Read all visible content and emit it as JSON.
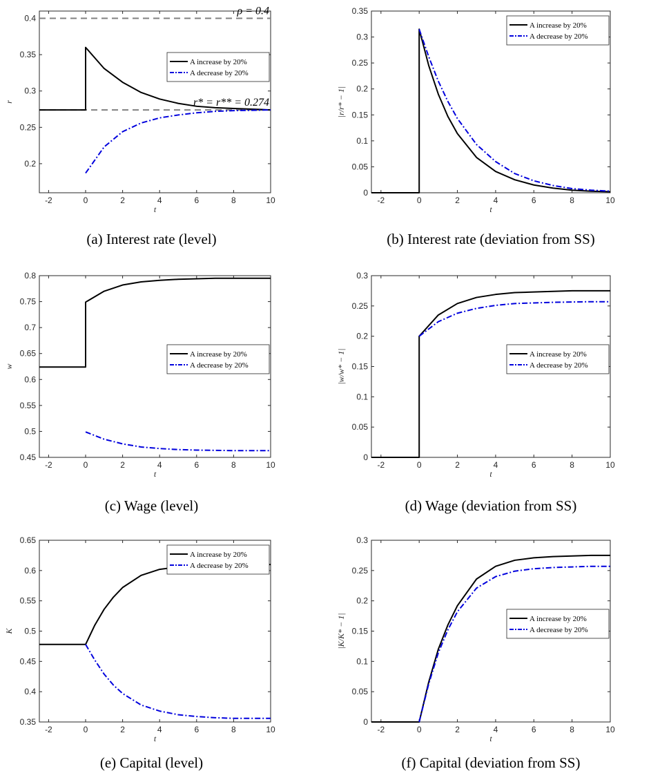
{
  "legend_labels": [
    "A increase by 20%",
    "A decrease by 20%"
  ],
  "colors": {
    "increase": "#000000",
    "decrease": "#0000dd",
    "ref": "#808080"
  },
  "chart_data": [
    {
      "id": "a",
      "type": "line",
      "caption": "(a) Interest rate (level)",
      "xlabel": "t",
      "ylabel": "r",
      "xlim": [
        -2.5,
        10
      ],
      "ylim": [
        0.16,
        0.41
      ],
      "xticks": [
        -2,
        0,
        2,
        4,
        6,
        8,
        10
      ],
      "yticks": [
        0.2,
        0.25,
        0.3,
        0.35,
        0.4
      ],
      "legend": {
        "position": "upper-right"
      },
      "reference_lines": [
        {
          "y": 0.4,
          "label": "ρ = 0.4"
        },
        {
          "y": 0.274,
          "label": "r* = r** = 0.274"
        }
      ],
      "series": [
        {
          "name": "A increase by 20%",
          "style": "solid",
          "color": "#000000",
          "x": [
            -2.5,
            0,
            0,
            1,
            2,
            3,
            4,
            5,
            6,
            7,
            8,
            9,
            10
          ],
          "y": [
            0.274,
            0.274,
            0.36,
            0.331,
            0.312,
            0.298,
            0.289,
            0.283,
            0.279,
            0.277,
            0.276,
            0.275,
            0.274
          ]
        },
        {
          "name": "A decrease by 20%",
          "style": "dashdot",
          "color": "#0000dd",
          "x": [
            0,
            1,
            2,
            3,
            4,
            5,
            6,
            7,
            8,
            9,
            10
          ],
          "y": [
            0.187,
            0.223,
            0.244,
            0.256,
            0.263,
            0.267,
            0.27,
            0.272,
            0.273,
            0.2735,
            0.274
          ]
        }
      ]
    },
    {
      "id": "b",
      "type": "line",
      "caption": "(b) Interest rate (deviation from SS)",
      "xlabel": "t",
      "ylabel": "|r/r* − 1|",
      "xlim": [
        -2.5,
        10
      ],
      "ylim": [
        0,
        0.35
      ],
      "xticks": [
        -2,
        0,
        2,
        4,
        6,
        8,
        10
      ],
      "yticks": [
        0,
        0.05,
        0.1,
        0.15,
        0.2,
        0.25,
        0.3,
        0.35
      ],
      "legend": {
        "position": "upper-right"
      },
      "series": [
        {
          "name": "A increase by 20%",
          "style": "solid",
          "color": "#000000",
          "x": [
            -2.5,
            0,
            0,
            0.5,
            1,
            1.5,
            2,
            3,
            4,
            5,
            6,
            7,
            8,
            9,
            10
          ],
          "y": [
            0,
            0,
            0.315,
            0.245,
            0.19,
            0.147,
            0.114,
            0.068,
            0.041,
            0.025,
            0.015,
            0.009,
            0.005,
            0.003,
            0.002
          ]
        },
        {
          "name": "A decrease by 20%",
          "style": "dashdot",
          "color": "#0000dd",
          "x": [
            0,
            0.5,
            1,
            1.5,
            2,
            3,
            4,
            5,
            6,
            7,
            8,
            9,
            10
          ],
          "y": [
            0.315,
            0.262,
            0.215,
            0.176,
            0.143,
            0.093,
            0.06,
            0.037,
            0.023,
            0.014,
            0.008,
            0.005,
            0.003
          ]
        }
      ]
    },
    {
      "id": "c",
      "type": "line",
      "caption": "(c) Wage (level)",
      "xlabel": "t",
      "ylabel": "w",
      "xlim": [
        -2.5,
        10
      ],
      "ylim": [
        0.45,
        0.8
      ],
      "xticks": [
        -2,
        0,
        2,
        4,
        6,
        8,
        10
      ],
      "yticks": [
        0.45,
        0.5,
        0.55,
        0.6,
        0.65,
        0.7,
        0.75,
        0.8
      ],
      "legend": {
        "position": "right"
      },
      "series": [
        {
          "name": "A increase by 20%",
          "style": "solid",
          "color": "#000000",
          "x": [
            -2.5,
            0,
            0,
            1,
            2,
            3,
            4,
            5,
            6,
            7,
            8,
            9,
            10
          ],
          "y": [
            0.624,
            0.624,
            0.749,
            0.77,
            0.782,
            0.788,
            0.791,
            0.793,
            0.794,
            0.795,
            0.795,
            0.795,
            0.795
          ]
        },
        {
          "name": "A decrease by 20%",
          "style": "dashdot",
          "color": "#0000dd",
          "x": [
            0,
            1,
            2,
            3,
            4,
            5,
            6,
            7,
            8,
            9,
            10
          ],
          "y": [
            0.499,
            0.485,
            0.476,
            0.47,
            0.467,
            0.465,
            0.464,
            0.4635,
            0.463,
            0.463,
            0.463
          ]
        }
      ]
    },
    {
      "id": "d",
      "type": "line",
      "caption": "(d) Wage (deviation from SS)",
      "xlabel": "t",
      "ylabel": "|w/w* − 1|",
      "xlim": [
        -2.5,
        10
      ],
      "ylim": [
        0,
        0.3
      ],
      "xticks": [
        -2,
        0,
        2,
        4,
        6,
        8,
        10
      ],
      "yticks": [
        0,
        0.05,
        0.1,
        0.15,
        0.2,
        0.25,
        0.3
      ],
      "legend": {
        "position": "right"
      },
      "series": [
        {
          "name": "A increase by 20%",
          "style": "solid",
          "color": "#000000",
          "x": [
            -2.5,
            0,
            0,
            1,
            2,
            3,
            4,
            5,
            6,
            7,
            8,
            9,
            10
          ],
          "y": [
            0,
            0,
            0.2,
            0.235,
            0.254,
            0.264,
            0.269,
            0.272,
            0.273,
            0.274,
            0.275,
            0.275,
            0.275
          ]
        },
        {
          "name": "A decrease by 20%",
          "style": "dashdot",
          "color": "#0000dd",
          "x": [
            0,
            1,
            2,
            3,
            4,
            5,
            6,
            7,
            8,
            9,
            10
          ],
          "y": [
            0.2,
            0.224,
            0.238,
            0.246,
            0.251,
            0.254,
            0.255,
            0.256,
            0.2565,
            0.257,
            0.257
          ]
        }
      ]
    },
    {
      "id": "e",
      "type": "line",
      "caption": "(e) Capital (level)",
      "xlabel": "t",
      "ylabel": "K",
      "xlim": [
        -2.5,
        10
      ],
      "ylim": [
        0.35,
        0.65
      ],
      "xticks": [
        -2,
        0,
        2,
        4,
        6,
        8,
        10
      ],
      "yticks": [
        0.35,
        0.4,
        0.45,
        0.5,
        0.55,
        0.6,
        0.65
      ],
      "legend": {
        "position": "upper-right"
      },
      "series": [
        {
          "name": "A increase by 20%",
          "style": "solid",
          "color": "#000000",
          "x": [
            -2.5,
            0,
            0.5,
            1,
            1.5,
            2,
            3,
            4,
            5,
            6,
            7,
            8,
            9,
            10
          ],
          "y": [
            0.478,
            0.478,
            0.51,
            0.536,
            0.556,
            0.572,
            0.592,
            0.602,
            0.606,
            0.608,
            0.609,
            0.61,
            0.61,
            0.61
          ]
        },
        {
          "name": "A decrease by 20%",
          "style": "dashdot",
          "color": "#0000dd",
          "x": [
            0,
            0.5,
            1,
            1.5,
            2,
            3,
            4,
            5,
            6,
            7,
            8,
            9,
            10
          ],
          "y": [
            0.478,
            0.452,
            0.429,
            0.411,
            0.397,
            0.378,
            0.368,
            0.362,
            0.359,
            0.357,
            0.356,
            0.356,
            0.356
          ]
        }
      ]
    },
    {
      "id": "f",
      "type": "line",
      "caption": "(f) Capital (deviation from SS)",
      "xlabel": "t",
      "ylabel": "|K/K* − 1|",
      "xlim": [
        -2.5,
        10
      ],
      "ylim": [
        0,
        0.3
      ],
      "xticks": [
        -2,
        0,
        2,
        4,
        6,
        8,
        10
      ],
      "yticks": [
        0,
        0.05,
        0.1,
        0.15,
        0.2,
        0.25,
        0.3
      ],
      "legend": {
        "position": "right"
      },
      "series": [
        {
          "name": "A increase by 20%",
          "style": "solid",
          "color": "#000000",
          "x": [
            -2.5,
            0,
            0.5,
            1,
            1.5,
            2,
            3,
            4,
            5,
            6,
            7,
            8,
            9,
            10
          ],
          "y": [
            0,
            0,
            0.066,
            0.12,
            0.16,
            0.192,
            0.236,
            0.257,
            0.267,
            0.271,
            0.273,
            0.274,
            0.275,
            0.275
          ]
        },
        {
          "name": "A decrease by 20%",
          "style": "dashdot",
          "color": "#0000dd",
          "x": [
            0,
            0.5,
            1,
            1.5,
            2,
            3,
            4,
            5,
            6,
            7,
            8,
            9,
            10
          ],
          "y": [
            0,
            0.063,
            0.114,
            0.152,
            0.182,
            0.221,
            0.24,
            0.249,
            0.253,
            0.255,
            0.256,
            0.257,
            0.257
          ]
        }
      ]
    }
  ]
}
